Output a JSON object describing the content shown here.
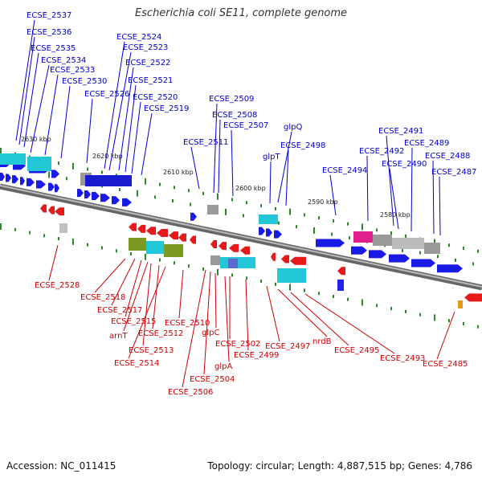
{
  "title": "Escherichia coli SE11, complete genome",
  "footer": {
    "accession": "Accession: NC_011415",
    "summary": "Topology: circular; Length: 4,887,515 bp; Genes: 4,786"
  },
  "colors": {
    "forward_label": "#0000cc",
    "reverse_label": "#cc0000",
    "forward_gene": "#1a1ae6",
    "reverse_gene": "#e61a1a",
    "backbone": "#888888",
    "tick": "#2a8a2a",
    "cyan_feature": "#22c8d8",
    "gray_feature": "#9a9a9a",
    "magenta_feature": "#e0208c",
    "olive_feature": "#7a9a20"
  },
  "kbp_labels": [
    "2630 kbp",
    "2620 kbp",
    "2610 kbp",
    "2600 kbp",
    "2590 kbp",
    "2580 kbp"
  ],
  "forward_genes": [
    "ECSE_2537",
    "ECSE_2536",
    "ECSE_2535",
    "ECSE_2534",
    "ECSE_2533",
    "ECSE_2530",
    "ECSE_2526",
    "ECSE_2524",
    "ECSE_2523",
    "ECSE_2522",
    "ECSE_2521",
    "ECSE_2520",
    "ECSE_2519",
    "ECSE_2511",
    "ECSE_2509",
    "ECSE_2508",
    "ECSE_2507",
    "glpQ",
    "glpT",
    "ECSE_2498",
    "ECSE_2494",
    "ECSE_2492",
    "ECSE_2491",
    "ECSE_2490",
    "ECSE_2489",
    "ECSE_2488",
    "ECSE_2487"
  ],
  "reverse_genes": [
    "ECSE_2528",
    "ECSE_2518",
    "ECSE_2517",
    "ECSE_2515",
    "arnT",
    "ECSE_2512",
    "ECSE_2510",
    "ECSE_2513",
    "ECSE_2514",
    "glpC",
    "ECSE_2502",
    "ECSE_2499",
    "glpA",
    "ECSE_2504",
    "ECSE_2506",
    "ECSE_2497",
    "nrdB",
    "ECSE_2495",
    "ECSE_2493",
    "ECSE_2485"
  ]
}
